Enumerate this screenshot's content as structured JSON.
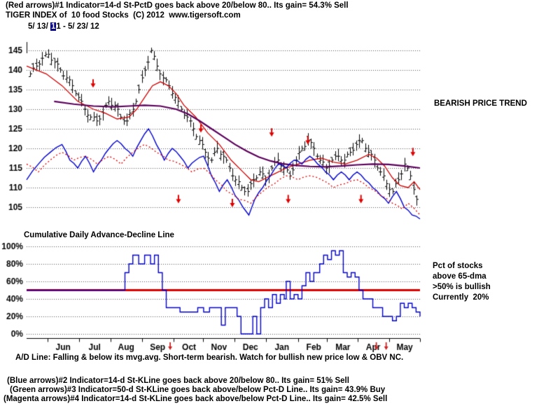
{
  "header": {
    "line1": "(Red arrows)#1 Indicator=14-d St-PctD goes back above 20/below 80.. Its gain= 54.3% Sell",
    "line2": "TIGER INDEX of  10 food Stocks  (C) 2012  www.tigersoft.com",
    "date_prefix": "5/ 13/ ",
    "date_highlight": "1",
    "date_suffix": "1 - 5/ 23/ 12"
  },
  "annotations": {
    "bearish": "BEARISH PRICE TREND",
    "ad_title": "Cumulative Daily Advance-Decline Line",
    "pct_line1": "Pct of stocks",
    "pct_line2": "above 65-dma",
    "pct_line3": ">50% is bullish",
    "pct_line4": "Currently  20%",
    "ad_note": "A/D Line: Falling & below its mvg.avg. Short-term bearish. Watch for bullish new price low & OBV NC."
  },
  "footer": {
    "line1": "(Blue arrows)#2 Indicator=14-d St-KLine goes back above 20/below 80.. Its gain= 51% Sell",
    "line2": "(Green arrows)#3 Indicator=50-d St-KLine goes back above/below Pct-D Line.. Its gain= 43.9% Buy",
    "line3": "(Magenta arrows)#4 Indicator=14-d St-KLine goes back above/below Pct-D Line.. Its gain= 42.5% Sell"
  },
  "colors": {
    "background": "#ffffff",
    "text": "#000000",
    "highlight": "#000080",
    "bars": "#000000",
    "arrow": "#dd0000",
    "grid": "#555555"
  },
  "chart_data": [
    {
      "type": "bar",
      "name": "price-panel",
      "title": "TIGER INDEX of 10 food Stocks",
      "x_range": [
        "5/13/11",
        "5/23/12"
      ],
      "ylim": [
        103,
        147
      ],
      "yticks": [
        145,
        140,
        135,
        130,
        125,
        120,
        115,
        110,
        105
      ],
      "grid": true,
      "months": [
        [
          "Jun",
          0.093
        ],
        [
          "Jul",
          0.173
        ],
        [
          "Aug",
          0.253
        ],
        [
          "Sep",
          0.333
        ],
        [
          "Oct",
          0.413
        ],
        [
          "Nov",
          0.489
        ],
        [
          "Dec",
          0.569
        ],
        [
          "Jan",
          0.649
        ],
        [
          "Feb",
          0.73
        ],
        [
          "Mar",
          0.804
        ],
        [
          "Apr",
          0.881
        ],
        [
          "May",
          0.961
        ]
      ],
      "price_close": [
        139,
        141,
        143,
        144,
        142,
        140,
        138,
        136,
        133,
        130,
        128,
        127,
        129,
        132,
        131,
        128,
        127,
        130,
        135,
        140,
        145,
        141,
        138,
        136,
        133,
        130,
        128,
        125,
        122,
        119,
        117,
        120,
        118,
        115,
        112,
        110,
        109,
        112,
        114,
        112,
        115,
        117,
        115,
        113,
        117,
        120,
        122,
        120,
        117,
        115,
        117,
        118,
        117,
        119,
        121,
        122,
        119,
        117,
        114,
        111,
        109,
        112,
        116,
        113,
        107
      ],
      "series": [
        {
          "name": "ma-fast-red",
          "color": "#cc0000",
          "style": "solid",
          "width": 1.3,
          "jagged": false,
          "points": [
            [
              0,
              141
            ],
            [
              0.05,
              139
            ],
            [
              0.09,
              136
            ],
            [
              0.13,
              132
            ],
            [
              0.17,
              130
            ],
            [
              0.2,
              129
            ],
            [
              0.23,
              127.5
            ],
            [
              0.26,
              128
            ],
            [
              0.28,
              130
            ],
            [
              0.3,
              133
            ],
            [
              0.32,
              136
            ],
            [
              0.34,
              137
            ],
            [
              0.36,
              136
            ],
            [
              0.38,
              134
            ],
            [
              0.4,
              131
            ],
            [
              0.43,
              128
            ],
            [
              0.46,
              124
            ],
            [
              0.49,
              121
            ],
            [
              0.52,
              117
            ],
            [
              0.55,
              114
            ],
            [
              0.57,
              112
            ],
            [
              0.59,
              111.5
            ],
            [
              0.61,
              112.5
            ],
            [
              0.63,
              113.5
            ],
            [
              0.66,
              115
            ],
            [
              0.69,
              116
            ],
            [
              0.72,
              117
            ],
            [
              0.75,
              117.5
            ],
            [
              0.78,
              116.5
            ],
            [
              0.81,
              116
            ],
            [
              0.84,
              117
            ],
            [
              0.87,
              118.5
            ],
            [
              0.89,
              117.5
            ],
            [
              0.91,
              115.5
            ],
            [
              0.93,
              112.5
            ],
            [
              0.95,
              110.5
            ],
            [
              0.97,
              110
            ],
            [
              0.985,
              111.5
            ],
            [
              1,
              109.5
            ]
          ]
        },
        {
          "name": "ma-slow-purple",
          "color": "#5a005a",
          "style": "solid",
          "width": 2.2,
          "jagged": false,
          "points": [
            [
              0.07,
              132
            ],
            [
              0.12,
              131.3
            ],
            [
              0.17,
              130.8
            ],
            [
              0.22,
              130.6
            ],
            [
              0.26,
              130.8
            ],
            [
              0.3,
              131
            ],
            [
              0.34,
              130.8
            ],
            [
              0.38,
              130
            ],
            [
              0.41,
              128.8
            ],
            [
              0.44,
              127
            ],
            [
              0.47,
              125
            ],
            [
              0.5,
              123
            ],
            [
              0.53,
              121
            ],
            [
              0.56,
              119.3
            ],
            [
              0.59,
              117.8
            ],
            [
              0.62,
              116.8
            ],
            [
              0.65,
              116.1
            ],
            [
              0.68,
              115.7
            ],
            [
              0.72,
              115.4
            ],
            [
              0.76,
              115.3
            ],
            [
              0.8,
              115.5
            ],
            [
              0.84,
              115.8
            ],
            [
              0.88,
              116
            ],
            [
              0.92,
              115.9
            ],
            [
              0.96,
              115.5
            ],
            [
              1,
              115
            ]
          ]
        },
        {
          "name": "closing-power-blue",
          "color": "#0000c8",
          "style": "solid",
          "width": 1.4,
          "jagged": true,
          "points": [
            [
              0,
              112
            ],
            [
              0.03,
              116
            ],
            [
              0.06,
              119
            ],
            [
              0.09,
              121
            ],
            [
              0.11,
              117
            ],
            [
              0.13,
              115
            ],
            [
              0.15,
              118
            ],
            [
              0.17,
              114
            ],
            [
              0.19,
              117
            ],
            [
              0.21,
              120
            ],
            [
              0.23,
              122
            ],
            [
              0.25,
              120
            ],
            [
              0.27,
              118
            ],
            [
              0.29,
              122
            ],
            [
              0.31,
              125
            ],
            [
              0.33,
              121
            ],
            [
              0.35,
              117
            ],
            [
              0.37,
              120
            ],
            [
              0.39,
              118
            ],
            [
              0.41,
              115
            ],
            [
              0.43,
              117
            ],
            [
              0.45,
              118
            ],
            [
              0.47,
              113
            ],
            [
              0.49,
              109
            ],
            [
              0.51,
              112
            ],
            [
              0.53,
              108
            ],
            [
              0.55,
              105
            ],
            [
              0.565,
              103
            ],
            [
              0.58,
              107
            ],
            [
              0.6,
              110
            ],
            [
              0.62,
              113
            ],
            [
              0.64,
              116
            ],
            [
              0.66,
              115
            ],
            [
              0.68,
              117
            ],
            [
              0.7,
              116
            ],
            [
              0.72,
              118
            ],
            [
              0.74,
              116
            ],
            [
              0.76,
              114
            ],
            [
              0.78,
              112
            ],
            [
              0.8,
              114
            ],
            [
              0.82,
              112
            ],
            [
              0.84,
              114
            ],
            [
              0.86,
              112
            ],
            [
              0.88,
              110
            ],
            [
              0.9,
              108
            ],
            [
              0.92,
              106
            ],
            [
              0.94,
              109
            ],
            [
              0.96,
              105
            ],
            [
              0.98,
              103
            ],
            [
              1,
              102
            ]
          ]
        },
        {
          "name": "pctd-red-dotted",
          "color": "#dd0000",
          "style": "dotted",
          "width": 1.3,
          "jagged": true,
          "points": [
            [
              0,
              116
            ],
            [
              0.03,
              114
            ],
            [
              0.06,
              117
            ],
            [
              0.09,
              119
            ],
            [
              0.12,
              117
            ],
            [
              0.15,
              118
            ],
            [
              0.18,
              116
            ],
            [
              0.21,
              118
            ],
            [
              0.24,
              116
            ],
            [
              0.27,
              119
            ],
            [
              0.3,
              121
            ],
            [
              0.33,
              119
            ],
            [
              0.36,
              117
            ],
            [
              0.39,
              116
            ],
            [
              0.42,
              114
            ],
            [
              0.45,
              115
            ],
            [
              0.48,
              112
            ],
            [
              0.51,
              109
            ],
            [
              0.54,
              107
            ],
            [
              0.57,
              106
            ],
            [
              0.6,
              109
            ],
            [
              0.63,
              111
            ],
            [
              0.66,
              113
            ],
            [
              0.69,
              112
            ],
            [
              0.72,
              113
            ],
            [
              0.75,
              112
            ],
            [
              0.78,
              110
            ],
            [
              0.81,
              111
            ],
            [
              0.84,
              112
            ],
            [
              0.87,
              110
            ],
            [
              0.9,
              108
            ],
            [
              0.93,
              106
            ],
            [
              0.955,
              104.5
            ],
            [
              0.97,
              106
            ],
            [
              1,
              103
            ]
          ]
        }
      ],
      "arrow_color": "#dd0000",
      "arrows": [
        {
          "f": 0.169,
          "price": 135.5
        },
        {
          "f": 0.443,
          "price": 124
        },
        {
          "f": 0.623,
          "price": 123
        },
        {
          "f": 0.715,
          "price": 121
        },
        {
          "f": 0.982,
          "price": 118
        },
        {
          "f": 0.386,
          "price": 106
        },
        {
          "f": 0.523,
          "price": 105
        },
        {
          "f": 0.665,
          "price": 106
        },
        {
          "f": 0.85,
          "price": 106
        }
      ]
    },
    {
      "type": "line",
      "name": "pct-above-65dma-panel",
      "ylabel": "Pct of stocks above 65-dma",
      "ylim": [
        0,
        100
      ],
      "yticks": [
        100,
        80,
        60,
        40,
        20,
        0
      ],
      "threshold": 50,
      "threshold_color": "#dd0000",
      "line_color": "#0000c8",
      "current_value": 20,
      "steps": [
        [
          0,
          50
        ],
        [
          0.24,
          50
        ],
        [
          0.25,
          70
        ],
        [
          0.26,
          80
        ],
        [
          0.27,
          90
        ],
        [
          0.285,
          80
        ],
        [
          0.3,
          90
        ],
        [
          0.315,
          80
        ],
        [
          0.325,
          90
        ],
        [
          0.335,
          70
        ],
        [
          0.345,
          50
        ],
        [
          0.355,
          30
        ],
        [
          0.375,
          30
        ],
        [
          0.39,
          25
        ],
        [
          0.42,
          25
        ],
        [
          0.435,
          30
        ],
        [
          0.45,
          25
        ],
        [
          0.465,
          30
        ],
        [
          0.485,
          30
        ],
        [
          0.495,
          10
        ],
        [
          0.505,
          30
        ],
        [
          0.525,
          30
        ],
        [
          0.535,
          20
        ],
        [
          0.545,
          0
        ],
        [
          0.565,
          0
        ],
        [
          0.575,
          20
        ],
        [
          0.585,
          0
        ],
        [
          0.595,
          30
        ],
        [
          0.605,
          40
        ],
        [
          0.615,
          30
        ],
        [
          0.625,
          45
        ],
        [
          0.635,
          35
        ],
        [
          0.645,
          45
        ],
        [
          0.655,
          40
        ],
        [
          0.66,
          60
        ],
        [
          0.67,
          40
        ],
        [
          0.68,
          45
        ],
        [
          0.69,
          40
        ],
        [
          0.7,
          55
        ],
        [
          0.71,
          70
        ],
        [
          0.72,
          60
        ],
        [
          0.73,
          70
        ],
        [
          0.745,
          80
        ],
        [
          0.755,
          90
        ],
        [
          0.765,
          85
        ],
        [
          0.775,
          95
        ],
        [
          0.785,
          90
        ],
        [
          0.795,
          95
        ],
        [
          0.805,
          70
        ],
        [
          0.815,
          65
        ],
        [
          0.825,
          70
        ],
        [
          0.835,
          65
        ],
        [
          0.845,
          50
        ],
        [
          0.855,
          40
        ],
        [
          0.87,
          40
        ],
        [
          0.88,
          30
        ],
        [
          0.895,
          30
        ],
        [
          0.905,
          20
        ],
        [
          0.92,
          20
        ],
        [
          0.93,
          15
        ],
        [
          0.94,
          20
        ],
        [
          0.95,
          35
        ],
        [
          0.96,
          30
        ],
        [
          0.97,
          35
        ],
        [
          0.98,
          30
        ],
        [
          0.99,
          25
        ],
        [
          1,
          20
        ]
      ],
      "axis_marks": [
        0.365,
        0.889,
        0.914
      ],
      "axis_mark_color": "#cc2222"
    }
  ]
}
